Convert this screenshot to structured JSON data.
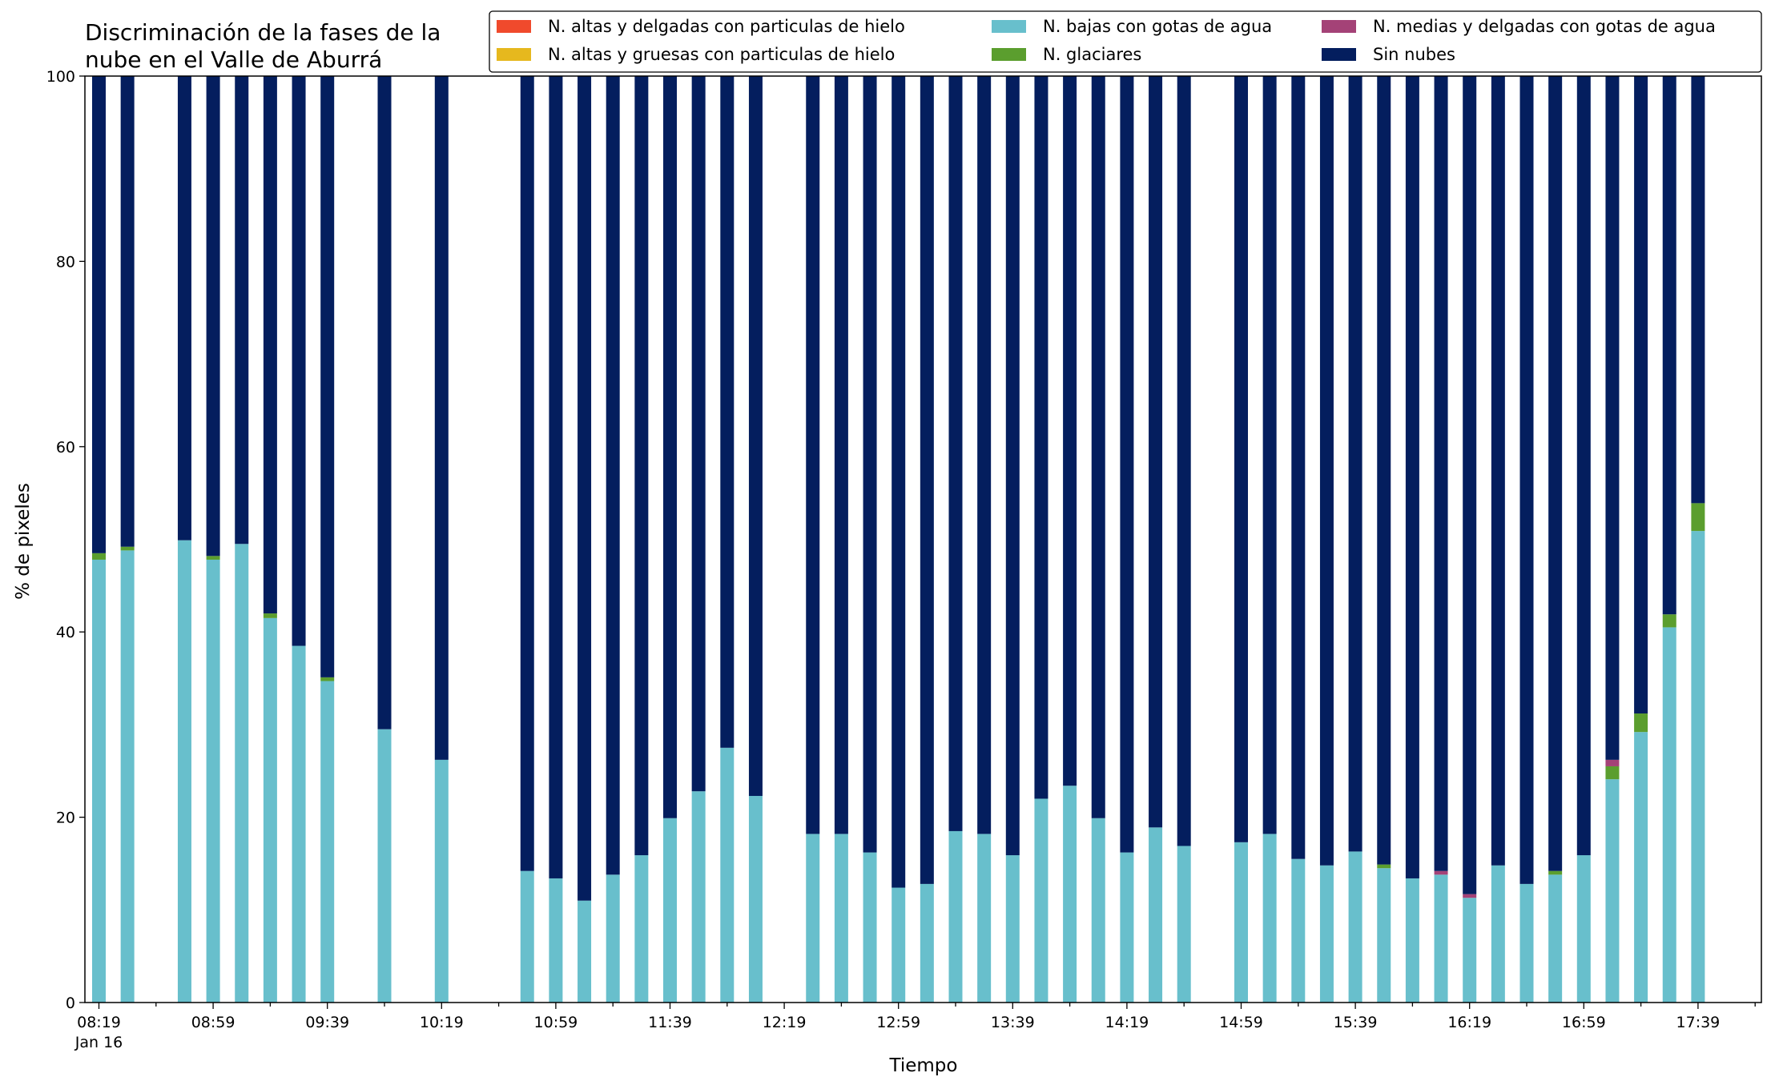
{
  "chart_data": {
    "type": "bar",
    "stacked": true,
    "title_lines": [
      "Discriminación de la fases de la",
      "nube en el Valle de Aburrá"
    ],
    "xlabel": "Tiempo",
    "ylabel": "% de pixeles",
    "ylim": [
      0,
      100
    ],
    "yticks": [
      0,
      20,
      40,
      60,
      80,
      100
    ],
    "x_start": "08:19",
    "x_end": "17:59",
    "x_step_minutes": 10,
    "xtick_labels": [
      "08:19",
      "08:59",
      "09:39",
      "10:19",
      "10:59",
      "11:39",
      "12:19",
      "12:59",
      "13:39",
      "14:19",
      "14:59",
      "15:39",
      "16:19",
      "16:59",
      "17:39"
    ],
    "xtick_sublabel": "Jan 16",
    "grid": false,
    "legend_position": "top-right",
    "series": [
      {
        "key": "altas_delgadas",
        "name": "N. altas y delgadas con particulas de hielo",
        "color": "#f04a2c"
      },
      {
        "key": "altas_gruesas",
        "name": "N. altas y gruesas con particulas de hielo",
        "color": "#e6b81e"
      },
      {
        "key": "bajas",
        "name": "N. bajas con gotas de agua",
        "color": "#68bfcc"
      },
      {
        "key": "glaciares",
        "name": "N. glaciares",
        "color": "#5b9e2e"
      },
      {
        "key": "medias",
        "name": "N. medias y delgadas con gotas de agua",
        "color": "#a44277"
      },
      {
        "key": "sin_nubes",
        "name": "Sin nubes",
        "color": "#041e5e"
      }
    ],
    "legend_order": [
      "altas_delgadas",
      "altas_gruesas",
      "bajas",
      "glaciares",
      "medias",
      "sin_nubes"
    ],
    "stack_order": [
      "altas_delgadas",
      "altas_gruesas",
      "bajas",
      "glaciares",
      "medias",
      "sin_nubes"
    ],
    "points": [
      {
        "time": "08:19",
        "bajas": 47.8,
        "glaciares": 0.7,
        "medias": 0,
        "sin_nubes": 51.5
      },
      {
        "time": "08:29",
        "bajas": 48.8,
        "glaciares": 0.4,
        "medias": 0,
        "sin_nubes": 50.8
      },
      {
        "time": "08:49",
        "bajas": 49.9,
        "glaciares": 0,
        "medias": 0,
        "sin_nubes": 50.1
      },
      {
        "time": "08:59",
        "bajas": 47.8,
        "glaciares": 0.4,
        "medias": 0,
        "sin_nubes": 51.8
      },
      {
        "time": "09:09",
        "bajas": 49.5,
        "glaciares": 0,
        "medias": 0,
        "sin_nubes": 50.5
      },
      {
        "time": "09:19",
        "bajas": 41.5,
        "glaciares": 0.5,
        "medias": 0,
        "sin_nubes": 58.0
      },
      {
        "time": "09:29",
        "bajas": 38.5,
        "glaciares": 0,
        "medias": 0,
        "sin_nubes": 61.5
      },
      {
        "time": "09:39",
        "bajas": 34.7,
        "glaciares": 0.4,
        "medias": 0,
        "sin_nubes": 64.9
      },
      {
        "time": "09:59",
        "bajas": 29.5,
        "glaciares": 0,
        "medias": 0,
        "sin_nubes": 70.5
      },
      {
        "time": "10:19",
        "bajas": 26.2,
        "glaciares": 0,
        "medias": 0,
        "sin_nubes": 73.8
      },
      {
        "time": "10:49",
        "bajas": 14.2,
        "glaciares": 0,
        "medias": 0,
        "sin_nubes": 85.8
      },
      {
        "time": "10:59",
        "bajas": 13.4,
        "glaciares": 0,
        "medias": 0,
        "sin_nubes": 86.6
      },
      {
        "time": "11:09",
        "bajas": 11.0,
        "glaciares": 0,
        "medias": 0,
        "sin_nubes": 89.0
      },
      {
        "time": "11:19",
        "bajas": 13.8,
        "glaciares": 0,
        "medias": 0,
        "sin_nubes": 86.2
      },
      {
        "time": "11:29",
        "bajas": 15.9,
        "glaciares": 0,
        "medias": 0,
        "sin_nubes": 84.1
      },
      {
        "time": "11:39",
        "bajas": 19.9,
        "glaciares": 0,
        "medias": 0,
        "sin_nubes": 80.1
      },
      {
        "time": "11:49",
        "bajas": 22.8,
        "glaciares": 0,
        "medias": 0,
        "sin_nubes": 77.2
      },
      {
        "time": "11:59",
        "bajas": 27.5,
        "glaciares": 0,
        "medias": 0,
        "sin_nubes": 72.5
      },
      {
        "time": "12:09",
        "bajas": 22.3,
        "glaciares": 0,
        "medias": 0,
        "sin_nubes": 77.7
      },
      {
        "time": "12:29",
        "bajas": 18.2,
        "glaciares": 0,
        "medias": 0,
        "sin_nubes": 81.8
      },
      {
        "time": "12:39",
        "bajas": 18.2,
        "glaciares": 0,
        "medias": 0,
        "sin_nubes": 81.8
      },
      {
        "time": "12:49",
        "bajas": 16.2,
        "glaciares": 0,
        "medias": 0,
        "sin_nubes": 83.8
      },
      {
        "time": "12:59",
        "bajas": 12.4,
        "glaciares": 0,
        "medias": 0,
        "sin_nubes": 87.6
      },
      {
        "time": "13:09",
        "bajas": 12.8,
        "glaciares": 0,
        "medias": 0,
        "sin_nubes": 87.2
      },
      {
        "time": "13:19",
        "bajas": 18.5,
        "glaciares": 0,
        "medias": 0,
        "sin_nubes": 81.5
      },
      {
        "time": "13:29",
        "bajas": 18.2,
        "glaciares": 0,
        "medias": 0,
        "sin_nubes": 81.8
      },
      {
        "time": "13:39",
        "bajas": 15.9,
        "glaciares": 0,
        "medias": 0,
        "sin_nubes": 84.1
      },
      {
        "time": "13:49",
        "bajas": 22.0,
        "glaciares": 0,
        "medias": 0,
        "sin_nubes": 78.0
      },
      {
        "time": "13:59",
        "bajas": 23.4,
        "glaciares": 0,
        "medias": 0,
        "sin_nubes": 76.6
      },
      {
        "time": "14:09",
        "bajas": 19.9,
        "glaciares": 0,
        "medias": 0,
        "sin_nubes": 80.1
      },
      {
        "time": "14:19",
        "bajas": 16.2,
        "glaciares": 0,
        "medias": 0,
        "sin_nubes": 83.8
      },
      {
        "time": "14:29",
        "bajas": 18.9,
        "glaciares": 0,
        "medias": 0,
        "sin_nubes": 81.1
      },
      {
        "time": "14:39",
        "bajas": 16.9,
        "glaciares": 0,
        "medias": 0,
        "sin_nubes": 83.1
      },
      {
        "time": "14:59",
        "bajas": 17.3,
        "glaciares": 0,
        "medias": 0,
        "sin_nubes": 82.7
      },
      {
        "time": "15:09",
        "bajas": 18.2,
        "glaciares": 0,
        "medias": 0,
        "sin_nubes": 81.8
      },
      {
        "time": "15:19",
        "bajas": 15.5,
        "glaciares": 0,
        "medias": 0,
        "sin_nubes": 84.5
      },
      {
        "time": "15:29",
        "bajas": 14.8,
        "glaciares": 0,
        "medias": 0,
        "sin_nubes": 85.2
      },
      {
        "time": "15:39",
        "bajas": 16.3,
        "glaciares": 0,
        "medias": 0,
        "sin_nubes": 83.7
      },
      {
        "time": "15:49",
        "bajas": 14.5,
        "glaciares": 0.4,
        "medias": 0,
        "sin_nubes": 85.1
      },
      {
        "time": "15:59",
        "bajas": 13.4,
        "glaciares": 0,
        "medias": 0,
        "sin_nubes": 86.6
      },
      {
        "time": "16:09",
        "bajas": 13.8,
        "glaciares": 0,
        "medias": 0.4,
        "sin_nubes": 85.8
      },
      {
        "time": "16:19",
        "bajas": 11.3,
        "glaciares": 0,
        "medias": 0.4,
        "sin_nubes": 88.3
      },
      {
        "time": "16:29",
        "bajas": 14.8,
        "glaciares": 0,
        "medias": 0,
        "sin_nubes": 85.2
      },
      {
        "time": "16:39",
        "bajas": 12.8,
        "glaciares": 0,
        "medias": 0,
        "sin_nubes": 87.2
      },
      {
        "time": "16:49",
        "bajas": 13.8,
        "glaciares": 0.4,
        "medias": 0,
        "sin_nubes": 85.8
      },
      {
        "time": "16:59",
        "bajas": 15.9,
        "glaciares": 0,
        "medias": 0,
        "sin_nubes": 84.1
      },
      {
        "time": "17:09",
        "bajas": 24.1,
        "glaciares": 1.4,
        "medias": 0.7,
        "sin_nubes": 73.8
      },
      {
        "time": "17:19",
        "bajas": 29.2,
        "glaciares": 2.0,
        "medias": 0,
        "sin_nubes": 68.8
      },
      {
        "time": "17:29",
        "bajas": 40.5,
        "glaciares": 1.4,
        "medias": 0,
        "sin_nubes": 58.1
      },
      {
        "time": "17:39",
        "bajas": 50.9,
        "glaciares": 3.0,
        "medias": 0,
        "sin_nubes": 46.1
      }
    ]
  }
}
